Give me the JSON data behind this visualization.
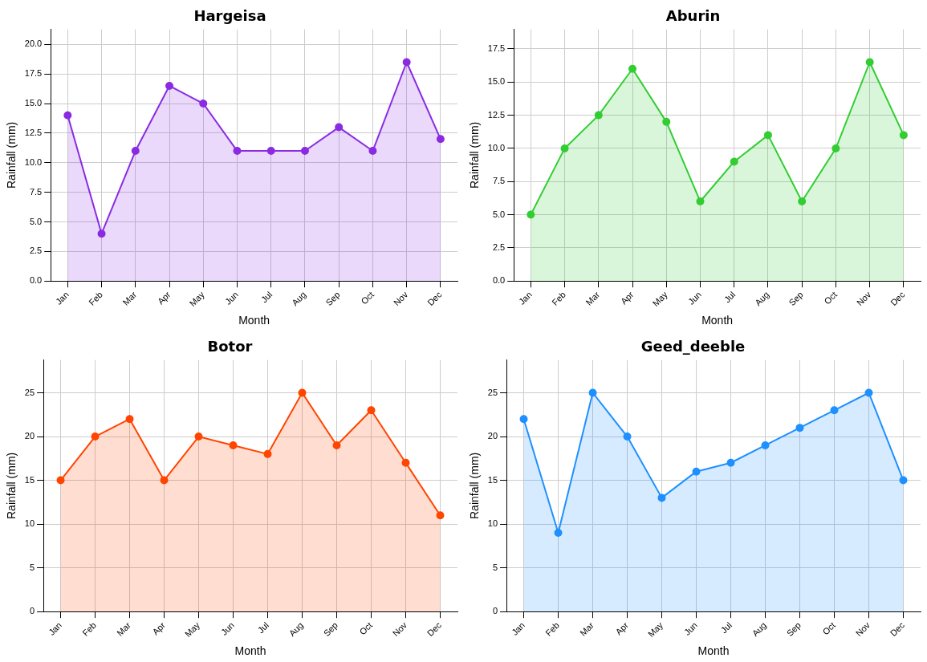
{
  "chart_data": [
    {
      "type": "area",
      "title": "Hargeisa",
      "xlabel": "Month",
      "ylabel": "Rainfall (mm)",
      "categories": [
        "Jan",
        "Feb",
        "Mar",
        "Apr",
        "May",
        "Jun",
        "Jul",
        "Aug",
        "Sep",
        "Oct",
        "Nov",
        "Dec"
      ],
      "series": [
        {
          "color": "#8a2be2",
          "values": [
            14,
            4,
            11,
            16.5,
            15,
            11,
            11,
            11,
            13,
            11,
            18.5,
            12
          ]
        }
      ],
      "ylim": [
        0,
        21.275
      ],
      "yticks": [
        {
          "value": 0,
          "label": "0.0"
        },
        {
          "value": 2.5,
          "label": "2.5"
        },
        {
          "value": 5,
          "label": "5.0"
        },
        {
          "value": 7.5,
          "label": "7.5"
        },
        {
          "value": 10,
          "label": "10.0"
        },
        {
          "value": 12.5,
          "label": "12.5"
        },
        {
          "value": 15,
          "label": "15.0"
        },
        {
          "value": 17.5,
          "label": "17.5"
        },
        {
          "value": 20,
          "label": "20.0"
        }
      ],
      "grid": true,
      "marker": "circle",
      "line_style": "solid"
    },
    {
      "type": "area",
      "title": "Aburin",
      "xlabel": "Month",
      "ylabel": "Rainfall (mm)",
      "categories": [
        "Jan",
        "Feb",
        "Mar",
        "Apr",
        "May",
        "Jun",
        "Jul",
        "Aug",
        "Sep",
        "Oct",
        "Nov",
        "Dec"
      ],
      "series": [
        {
          "color": "#32cd32",
          "values": [
            5,
            10,
            12.5,
            16,
            12,
            6,
            9,
            11,
            6,
            10,
            16.5,
            11
          ]
        }
      ],
      "ylim": [
        0,
        18.975
      ],
      "yticks": [
        {
          "value": 0,
          "label": "0.0"
        },
        {
          "value": 2.5,
          "label": "2.5"
        },
        {
          "value": 5,
          "label": "5.0"
        },
        {
          "value": 7.5,
          "label": "7.5"
        },
        {
          "value": 10,
          "label": "10.0"
        },
        {
          "value": 12.5,
          "label": "12.5"
        },
        {
          "value": 15,
          "label": "15.0"
        },
        {
          "value": 17.5,
          "label": "17.5"
        }
      ],
      "grid": true,
      "marker": "circle",
      "line_style": "solid"
    },
    {
      "type": "area",
      "title": "Botor",
      "xlabel": "Month",
      "ylabel": "Rainfall (mm)",
      "categories": [
        "Jan",
        "Feb",
        "Mar",
        "Apr",
        "May",
        "Jun",
        "Jul",
        "Aug",
        "Sep",
        "Oct",
        "Nov",
        "Dec"
      ],
      "series": [
        {
          "color": "#ff4500",
          "values": [
            15,
            20,
            22,
            15,
            20,
            19,
            18,
            25,
            19,
            23,
            17,
            11
          ]
        }
      ],
      "ylim": [
        0,
        28.75
      ],
      "yticks": [
        0,
        5,
        10,
        15,
        20,
        25
      ],
      "grid": true,
      "marker": "circle",
      "line_style": "solid"
    },
    {
      "type": "area",
      "title": "Geed_deeble",
      "xlabel": "Month",
      "ylabel": "Rainfall (mm)",
      "categories": [
        "Jan",
        "Feb",
        "Mar",
        "Apr",
        "May",
        "Jun",
        "Jul",
        "Aug",
        "Sep",
        "Oct",
        "Nov",
        "Dec"
      ],
      "series": [
        {
          "color": "#1e90ff",
          "values": [
            22,
            9,
            25,
            20,
            13,
            16,
            17,
            19,
            21,
            23,
            25,
            15
          ]
        }
      ],
      "ylim": [
        0,
        28.75
      ],
      "yticks": [
        0,
        5,
        10,
        15,
        20,
        25
      ],
      "grid": true,
      "marker": "circle",
      "line_style": "solid"
    }
  ]
}
